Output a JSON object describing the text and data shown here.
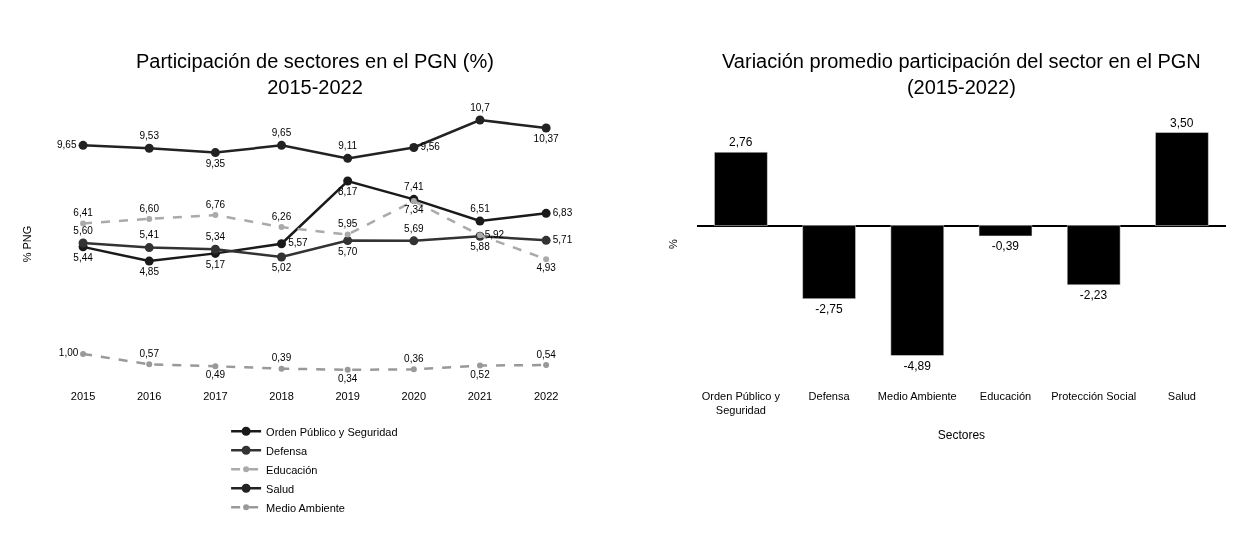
{
  "chart_data": [
    {
      "type": "line",
      "title": "Participación de sectores en el PGN (%)\n2015-2022",
      "ylabel": "% PNG",
      "categories": [
        "2015",
        "2016",
        "2017",
        "2018",
        "2019",
        "2020",
        "2021",
        "2022"
      ],
      "tick_labels": "x",
      "grid": false,
      "legend": "bottom",
      "marker": "circle",
      "series": [
        {
          "name": "Orden Público y Seguridad",
          "color": "#1a1a1a",
          "line_style": "solid",
          "values": [
            5.44,
            4.85,
            5.17,
            5.57,
            8.17,
            7.41,
            6.51,
            6.83
          ],
          "value_labels": [
            "5,44",
            "4,85",
            "5,17",
            "5,57",
            "8,17",
            "7,41",
            "6,51",
            "6,83"
          ]
        },
        {
          "name": "Defensa",
          "color": "#333333",
          "line_style": "solid",
          "values": [
            5.6,
            5.41,
            5.34,
            5.02,
            5.7,
            5.69,
            5.88,
            5.71
          ],
          "value_labels": [
            "5,60",
            "5,41",
            "5,34",
            "5,02",
            "5,70",
            "5,69",
            "5,88",
            "5,71"
          ]
        },
        {
          "name": "Educación",
          "color": "#aaaaaa",
          "line_style": "dashed",
          "values": [
            6.41,
            6.6,
            6.76,
            6.26,
            5.95,
            7.34,
            5.92,
            4.93
          ],
          "value_labels": [
            "6,41",
            "6,60",
            "6,76",
            "6,26",
            "5,95",
            "7,34",
            "5,92",
            "4,93"
          ]
        },
        {
          "name": "Salud",
          "color": "#222222",
          "line_style": "solid",
          "values": [
            9.65,
            9.53,
            9.35,
            9.65,
            9.11,
            9.56,
            10.7,
            10.37
          ],
          "value_labels": [
            "9,65",
            "9,53",
            "9,35",
            "9,65",
            "9,11",
            "9,56",
            "10,7",
            "10,37"
          ]
        },
        {
          "name": "Medio Ambiente",
          "color": "#999999",
          "line_style": "dashed",
          "values": [
            1.0,
            0.57,
            0.49,
            0.39,
            0.34,
            0.36,
            0.52,
            0.54
          ],
          "value_labels": [
            "1,00",
            "0,57",
            "0,49",
            "0,39",
            "0,34",
            "0,36",
            "0,52",
            "0,54"
          ]
        }
      ]
    },
    {
      "type": "bar",
      "title": "Variación promedio participación del sector en el PGN\n(2015-2022)",
      "xlabel": "Sectores",
      "ylabel": "%",
      "categories": [
        "Orden Público y Seguridad",
        "Defensa",
        "Medio Ambiente",
        "Educación",
        "Protección Social",
        "Salud"
      ],
      "tick_labels": "x",
      "grid": false,
      "legend": false,
      "series": [
        {
          "color": "#000000",
          "values": [
            2.76,
            -2.75,
            -4.89,
            -0.39,
            -2.23,
            3.5
          ],
          "value_labels": [
            "2,76",
            "-2,75",
            "-4,89",
            "-0,39",
            "-2,23",
            "3,50"
          ]
        }
      ]
    }
  ]
}
